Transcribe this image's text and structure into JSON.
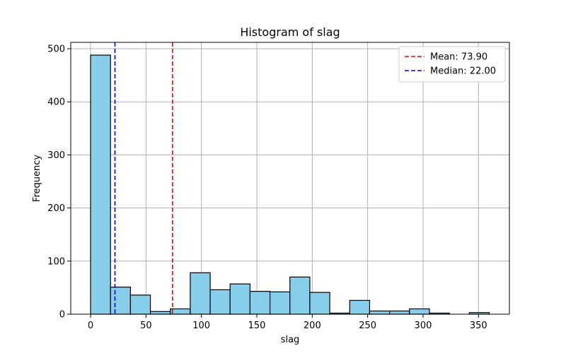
{
  "chart_data": {
    "type": "bar",
    "title": "Histogram of slag",
    "xlabel": "slag",
    "ylabel": "Frequency",
    "xlim": [
      -17.9,
      377.9
    ],
    "ylim": [
      0,
      512
    ],
    "xticks": [
      0,
      50,
      100,
      150,
      200,
      250,
      300,
      350
    ],
    "yticks": [
      0,
      100,
      200,
      300,
      400,
      500
    ],
    "grid": true,
    "bar_color": "#87ceeb",
    "bar_edge_color": "#000000",
    "bins": {
      "edges": [
        0,
        17.985,
        35.97,
        53.955,
        71.94,
        89.925,
        107.91,
        125.895,
        143.88,
        161.865,
        179.85,
        197.835,
        215.82,
        233.805,
        251.79,
        269.775,
        287.76,
        305.745,
        323.73,
        341.715,
        359.7
      ],
      "counts": [
        488,
        51,
        36,
        5,
        10,
        78,
        46,
        57,
        43,
        42,
        70,
        41,
        2,
        26,
        6,
        6,
        10,
        2,
        0,
        3
      ]
    },
    "reference_lines": [
      {
        "label": "Mean: 73.90",
        "value": 73.9,
        "color": "#ff0000"
      },
      {
        "label": "Median: 22.00",
        "value": 22.0,
        "color": "#0000ff"
      }
    ],
    "legend_position": "top-right"
  }
}
